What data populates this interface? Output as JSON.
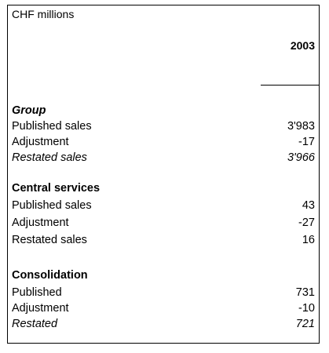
{
  "table": {
    "caption": "CHF millions",
    "year": "2003",
    "sections": [
      {
        "heading": "Group",
        "rows": [
          {
            "label": "Published sales",
            "value": "3'983"
          },
          {
            "label": "Adjustment",
            "value": "-17"
          },
          {
            "label": "Restated sales",
            "value": "3'966"
          }
        ]
      },
      {
        "heading": "Central services",
        "rows": [
          {
            "label": "Published sales",
            "value": "43"
          },
          {
            "label": "Adjustment",
            "value": "-27"
          },
          {
            "label": "Restated sales",
            "value": "16"
          }
        ]
      },
      {
        "heading": "Consolidation",
        "rows": [
          {
            "label": "Published",
            "value": "731"
          },
          {
            "label": "Adjustment",
            "value": "-10"
          },
          {
            "label": "Restated",
            "value": "721"
          }
        ]
      }
    ]
  }
}
